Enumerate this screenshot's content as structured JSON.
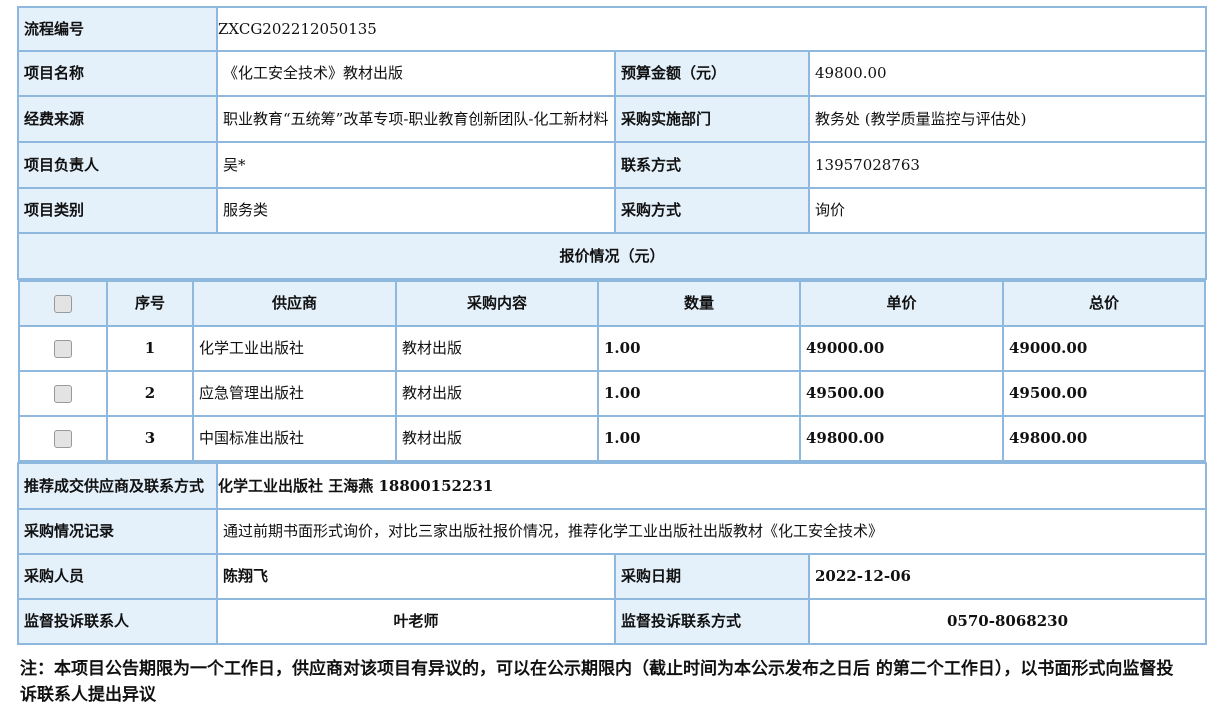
{
  "info": {
    "process_no_label": "流程编号",
    "process_no": "ZXCG202212050135",
    "project_name_label": "项目名称",
    "project_name": "《化工安全技术》教材出版",
    "budget_label": "预算金额（元）",
    "budget": "49800.00",
    "fund_source_label": "经费来源",
    "fund_source": "职业教育“五统筹”改革专项-职业教育创新团队-化工新材料",
    "dept_label": "采购实施部门",
    "dept": "教务处 (教学质量监控与评估处)",
    "leader_label": "项目负责人",
    "leader": "吴*",
    "contact_label": "联系方式",
    "contact": "13957028763",
    "category_label": "项目类别",
    "category": "服务类",
    "method_label": "采购方式",
    "method": "询价"
  },
  "quote": {
    "title": "报价情况（元）",
    "headers": [
      "序号",
      "供应商",
      "采购内容",
      "数量",
      "单价",
      "总价"
    ],
    "rows": [
      {
        "no": "1",
        "supplier": "化学工业出版社",
        "content": "教材出版",
        "qty": "1.00",
        "unit": "49000.00",
        "total": "49000.00",
        "checked": false
      },
      {
        "no": "2",
        "supplier": "应急管理出版社",
        "content": "教材出版",
        "qty": "1.00",
        "unit": "49500.00",
        "total": "49500.00",
        "checked": false
      },
      {
        "no": "3",
        "supplier": "中国标准出版社",
        "content": "教材出版",
        "qty": "1.00",
        "unit": "49800.00",
        "total": "49800.00",
        "checked": false
      }
    ]
  },
  "result": {
    "recommend_label": "推荐成交供应商及联系方式",
    "recommend": "化学工业出版社 王海燕 18800152231",
    "record_label": "采购情况记录",
    "record": "通过前期书面形式询价，对比三家出版社报价情况，推荐化学工业出版社出版教材《化工安全技术》",
    "buyer_label": "采购人员",
    "buyer": "陈翔飞",
    "date_label": "采购日期",
    "date": "2022-12-06",
    "supervisor_label": "监督投诉联系人",
    "supervisor": "叶老师",
    "supervisor_contact_label": "监督投诉联系方式",
    "supervisor_contact": "0570-8068230"
  },
  "note": "注：本项目公告期限为一个工作日，供应商对该项目有异议的，可以在公示期限内（截止时间为本公示发布之日后 的第二个工作日），以书面形式向监督投诉联系人提出异议",
  "colors": {
    "border": "#8fb8de",
    "label_bg": "#e4f1fb"
  }
}
